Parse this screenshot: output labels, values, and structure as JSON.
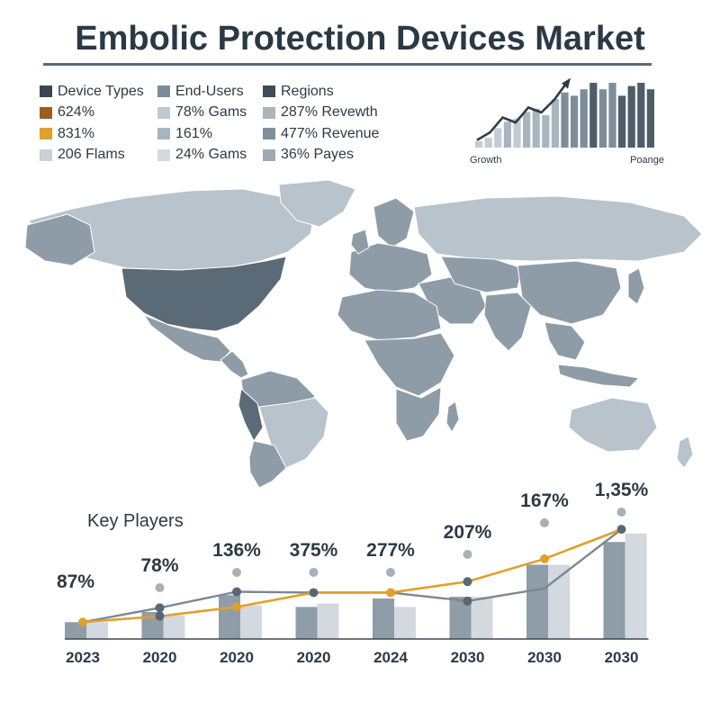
{
  "title": "Embolic Protection Devices Market",
  "legend": {
    "columns": [
      {
        "items": [
          {
            "label": "Device Types",
            "color": "#3a4752"
          },
          {
            "label": "624%",
            "color": "#9a5f1e"
          },
          {
            "label": "831%",
            "color": "#e0a02c"
          },
          {
            "label": "206 Flams",
            "color": "#c9d1d8"
          }
        ]
      },
      {
        "items": [
          {
            "label": "End-Users",
            "color": "#7b8b98"
          },
          {
            "label": "78% Gams",
            "color": "#bfc9d0"
          },
          {
            "label": "161%",
            "color": "#a9b5be"
          },
          {
            "label": "24% Gams",
            "color": "#d3dae0"
          }
        ]
      },
      {
        "items": [
          {
            "label": "Regions",
            "color": "#3f4d59"
          },
          {
            "label": "287% Revewth",
            "color": "#aab5be"
          },
          {
            "label": "477% Revenue",
            "color": "#7f8f9c"
          },
          {
            "label": "36% Payes",
            "color": "#9eaab4"
          }
        ]
      }
    ]
  },
  "growth_chart": {
    "left_label": "Growth",
    "right_label": "Poange",
    "bar_values": [
      1,
      1.5,
      3,
      4,
      4.5,
      5.5,
      6,
      5,
      7.5,
      8.5,
      8,
      9,
      10,
      9,
      10,
      8,
      9.5,
      10,
      9
    ],
    "line_values": [
      1.5,
      3,
      6,
      5,
      8,
      7,
      9.5,
      13
    ]
  },
  "map": {
    "label": "world map",
    "color_light": "#b8c3cb",
    "color_mid": "#8e9ca8",
    "color_dark": "#5b6a77"
  },
  "chart_data": {
    "type": "bar",
    "subtitle": "Key Players",
    "categories": [
      "2023",
      "2020",
      "2020",
      "2020",
      "2024",
      "2030",
      "2030",
      "2030"
    ],
    "data_labels": [
      "87%",
      "78%",
      "136%",
      "375%",
      "277%",
      "207%",
      "167%",
      "1,35%"
    ],
    "series": [
      {
        "kind": "bar",
        "color": "#8f9da9",
        "values": [
          20,
          32,
          52,
          38,
          48,
          50,
          88,
          115
        ]
      },
      {
        "kind": "bar",
        "color": "#d3d9de",
        "values": [
          20,
          28,
          40,
          42,
          38,
          50,
          88,
          125
        ]
      },
      {
        "kind": "line",
        "color": "#e0a02c",
        "values": [
          20,
          27,
          38,
          55,
          55,
          68,
          95,
          130
        ]
      },
      {
        "kind": "line",
        "color": "#586774",
        "values": [
          20,
          37,
          56,
          55,
          55,
          45,
          60,
          130
        ]
      }
    ],
    "ylim": [
      0,
      160
    ]
  }
}
